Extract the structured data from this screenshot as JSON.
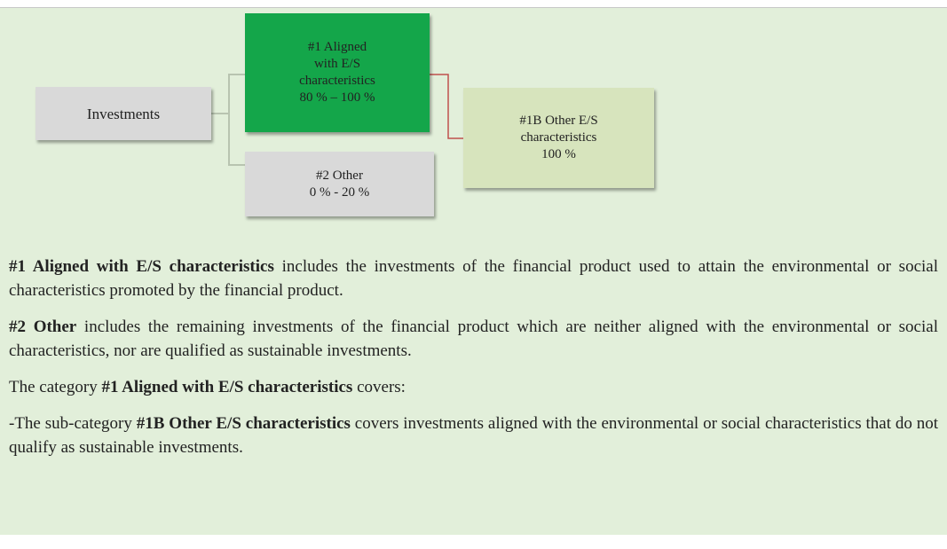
{
  "nodes": [
    {
      "lines": [
        "Investments"
      ]
    },
    {
      "lines": [
        "#1 Aligned",
        "with E/S",
        "characteristics",
        "80 % – 100 %"
      ]
    },
    {
      "lines": [
        "#2 Other",
        "0 % - 20 %"
      ]
    },
    {
      "lines": [
        "#1B Other E/S",
        "characteristics",
        "100 %"
      ]
    }
  ],
  "paragraphs": [
    [
      {
        "text": "#1 Aligned with E/S characteristics",
        "bold": true
      },
      {
        "text": " includes the investments of the financial product used to attain the environmental or social characteristics promoted by the financial product.",
        "bold": false
      }
    ],
    [
      {
        "text": "#2 Other",
        "bold": true
      },
      {
        "text": " includes the remaining investments of the financial product which are neither aligned with the environmental or social characteristics, nor are qualified as sustainable investments.",
        "bold": false
      }
    ],
    [
      {
        "text": "The category ",
        "bold": false
      },
      {
        "text": "#1 Aligned with E/S characteristics",
        "bold": true
      },
      {
        "text": " covers:",
        "bold": false
      }
    ],
    [
      {
        "text": "-The sub-category ",
        "bold": false
      },
      {
        "text": "#1B Other E/S characteristics",
        "bold": true
      },
      {
        "text": " covers investments aligned with the environmental or social characteristics that do not qualify as sustainable investments.",
        "bold": false
      }
    ]
  ]
}
